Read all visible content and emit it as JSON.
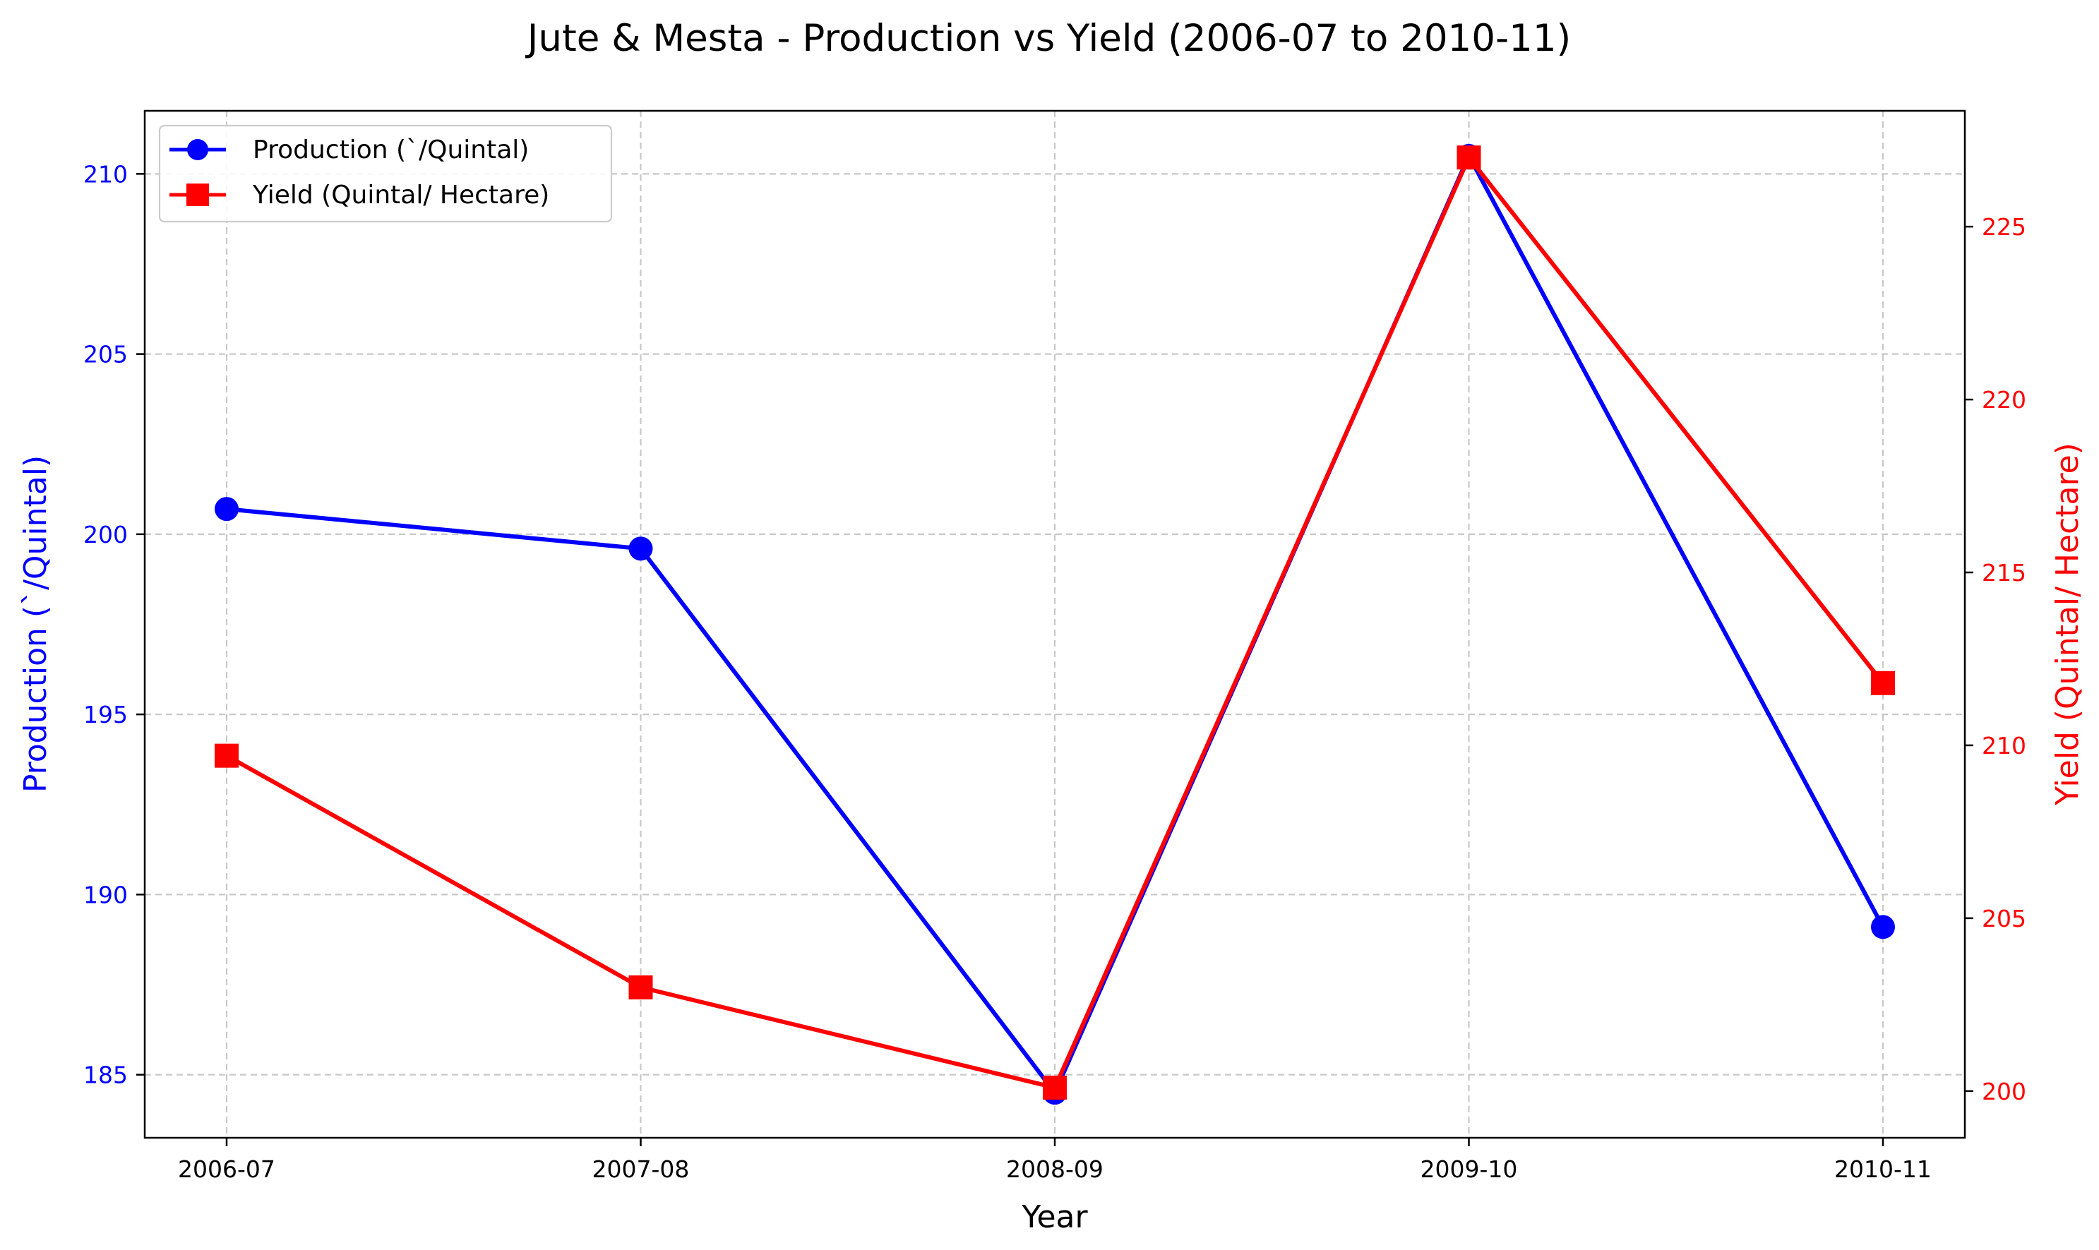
{
  "chart_data": {
    "type": "line",
    "title": "Jute & Mesta - Production vs Yield (2006-07 to 2010-11)",
    "xlabel": "Year",
    "categories": [
      "2006-07",
      "2007-08",
      "2008-09",
      "2009-10",
      "2010-11"
    ],
    "y_left": {
      "label": "Production (`/Quintal)",
      "range": [
        183.25,
        211.75
      ],
      "ticks": [
        185,
        190,
        195,
        200,
        205,
        210
      ],
      "color": "#0000ff"
    },
    "y_right": {
      "label": "Yield (Quintal/ Hectare)",
      "range": [
        198.65,
        228.35
      ],
      "ticks": [
        200,
        205,
        210,
        215,
        220,
        225
      ],
      "color": "#ff0000"
    },
    "series": [
      {
        "name": "Production (`/Quintal)",
        "axis": "left",
        "color": "#0000ff",
        "marker": "circle",
        "values": [
          200.7,
          199.6,
          184.5,
          210.5,
          189.1
        ]
      },
      {
        "name": "Yield (Quintal/ Hectare)",
        "axis": "right",
        "color": "#ff0000",
        "marker": "square",
        "values": [
          209.7,
          203.0,
          200.1,
          227.0,
          211.8
        ]
      }
    ],
    "grid": true,
    "legend_position": "top-left"
  }
}
